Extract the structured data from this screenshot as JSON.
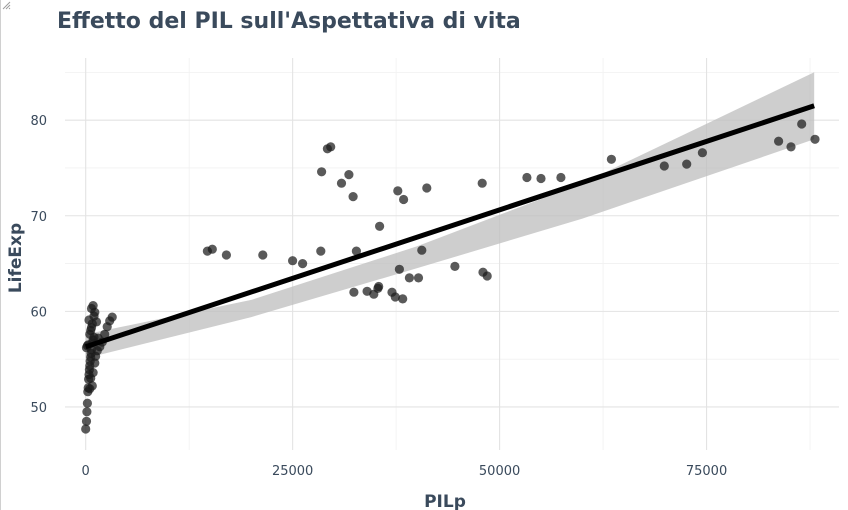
{
  "chart_data": {
    "type": "scatter",
    "title": "Effetto del PIL sull'Aspettativa di vita",
    "xlabel": "PILp",
    "ylabel": "LifeExp",
    "xlim": [
      -2500,
      91000
    ],
    "ylim": [
      45.5,
      86.5
    ],
    "xticks": [
      0,
      25000,
      50000,
      75000
    ],
    "xtick_labels": [
      "0",
      "25000",
      "50000",
      "75000"
    ],
    "yticks": [
      50,
      60,
      70,
      80
    ],
    "ytick_labels": [
      "50",
      "60",
      "70",
      "80"
    ],
    "grid": true,
    "legend": "none",
    "points": [
      [
        0,
        47.7
      ],
      [
        100,
        48.5
      ],
      [
        150,
        49.5
      ],
      [
        200,
        50.4
      ],
      [
        250,
        51.6
      ],
      [
        300,
        52.0
      ],
      [
        350,
        52.9
      ],
      [
        400,
        53.4
      ],
      [
        450,
        53.9
      ],
      [
        500,
        54.3
      ],
      [
        550,
        54.8
      ],
      [
        600,
        55.2
      ],
      [
        650,
        55.6
      ],
      [
        700,
        56.0
      ],
      [
        100,
        56.2
      ],
      [
        200,
        56.4
      ],
      [
        300,
        56.5
      ],
      [
        800,
        56.7
      ],
      [
        900,
        57.0
      ],
      [
        1000,
        57.3
      ],
      [
        500,
        57.6
      ],
      [
        600,
        58.0
      ],
      [
        700,
        58.3
      ],
      [
        800,
        58.7
      ],
      [
        400,
        59.1
      ],
      [
        1000,
        59.5
      ],
      [
        1100,
        59.9
      ],
      [
        700,
        60.3
      ],
      [
        900,
        60.6
      ],
      [
        1300,
        58.9
      ],
      [
        1500,
        57.2
      ],
      [
        1700,
        56.3
      ],
      [
        2000,
        56.8
      ],
      [
        2300,
        57.6
      ],
      [
        2600,
        58.4
      ],
      [
        2900,
        59.0
      ],
      [
        3200,
        59.4
      ],
      [
        1200,
        55.3
      ],
      [
        1400,
        55.9
      ],
      [
        600,
        53.0
      ],
      [
        800,
        52.2
      ],
      [
        500,
        51.9
      ],
      [
        1100,
        54.6
      ],
      [
        900,
        53.6
      ],
      [
        14700,
        66.3
      ],
      [
        15300,
        66.5
      ],
      [
        17000,
        65.9
      ],
      [
        21400,
        65.9
      ],
      [
        25000,
        65.3
      ],
      [
        26200,
        65.0
      ],
      [
        28400,
        66.3
      ],
      [
        28500,
        74.6
      ],
      [
        29200,
        77.0
      ],
      [
        29600,
        77.2
      ],
      [
        30900,
        73.4
      ],
      [
        31800,
        74.3
      ],
      [
        32300,
        72.0
      ],
      [
        32400,
        62.0
      ],
      [
        32700,
        66.3
      ],
      [
        34000,
        62.1
      ],
      [
        34800,
        61.8
      ],
      [
        35300,
        62.4
      ],
      [
        35400,
        62.6
      ],
      [
        35500,
        68.9
      ],
      [
        37000,
        62.0
      ],
      [
        37400,
        61.5
      ],
      [
        37700,
        72.6
      ],
      [
        37900,
        64.4
      ],
      [
        38300,
        61.3
      ],
      [
        38400,
        71.7
      ],
      [
        39100,
        63.5
      ],
      [
        40200,
        63.5
      ],
      [
        40600,
        66.4
      ],
      [
        41200,
        72.9
      ],
      [
        44600,
        64.7
      ],
      [
        47900,
        73.4
      ],
      [
        48000,
        64.1
      ],
      [
        48500,
        63.7
      ],
      [
        53300,
        74.0
      ],
      [
        55000,
        73.9
      ],
      [
        57400,
        74.0
      ],
      [
        63500,
        75.9
      ],
      [
        69900,
        75.2
      ],
      [
        72600,
        75.4
      ],
      [
        74500,
        76.6
      ],
      [
        83700,
        77.8
      ],
      [
        85200,
        77.2
      ],
      [
        86500,
        79.6
      ],
      [
        88100,
        78.0
      ]
    ],
    "fit_line": {
      "x": [
        0,
        88000
      ],
      "y": [
        56.3,
        81.5
      ]
    },
    "confidence_band": {
      "x": [
        0,
        20000,
        40000,
        60000,
        88000
      ],
      "upper": [
        57.6,
        61.2,
        66.8,
        73.4,
        85.0
      ],
      "lower": [
        55.1,
        59.4,
        64.5,
        69.7,
        78.0
      ]
    },
    "colors": {
      "points": "#1a1a1a",
      "fit": "#000000",
      "band": "#bdbdbd",
      "text": "#3a4a5c"
    }
  }
}
